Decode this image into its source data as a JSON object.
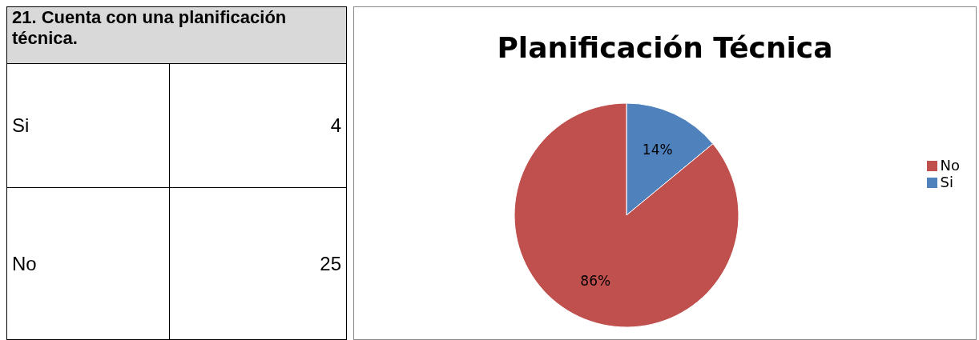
{
  "chart_data": [
    {
      "type": "other",
      "title": "21. Cuenta con una planificación técnica.",
      "categories": [
        "Si",
        "No"
      ],
      "values": [
        4,
        25
      ],
      "data_labels": true
    },
    {
      "type": "pie",
      "title": "Planificación Técnica",
      "categories": [
        "Si",
        "No"
      ],
      "values": [
        14,
        86
      ],
      "colors": [
        "#4f81bd",
        "#c0504d"
      ],
      "value_labels": [
        "14%",
        "86%"
      ],
      "legend": "right"
    }
  ]
}
